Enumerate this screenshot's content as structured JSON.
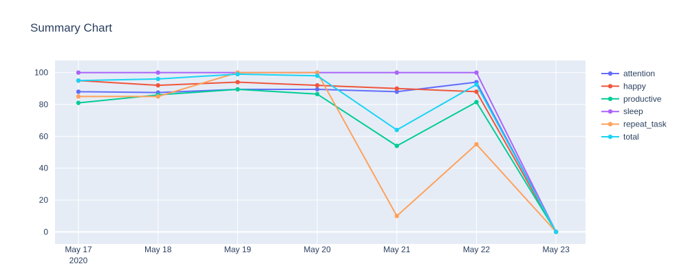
{
  "chart_data": {
    "type": "line",
    "title": "Summary Chart",
    "xlabel": "",
    "ylabel": "",
    "categories": [
      "May 17",
      "May 18",
      "May 19",
      "May 20",
      "May 21",
      "May 22",
      "May 23"
    ],
    "x_year_label": "2020",
    "ylim": [
      -7.6,
      107.6
    ],
    "yticks": [
      0,
      20,
      40,
      60,
      80,
      100
    ],
    "grid": true,
    "legend_position": "right",
    "series": [
      {
        "name": "attention",
        "color": "#636efa",
        "values": [
          88,
          87.5,
          89.5,
          89.5,
          88,
          94,
          0
        ]
      },
      {
        "name": "happy",
        "color": "#EF553B",
        "values": [
          95,
          92,
          94,
          92,
          90,
          88,
          0
        ]
      },
      {
        "name": "productive",
        "color": "#00cc96",
        "values": [
          81,
          86,
          89.5,
          86.5,
          54,
          81.5,
          0
        ]
      },
      {
        "name": "sleep",
        "color": "#ab63fa",
        "values": [
          100,
          100,
          100,
          100,
          100,
          100,
          0
        ]
      },
      {
        "name": "repeat_task",
        "color": "#FFA15A",
        "values": [
          85,
          85,
          100,
          100,
          10,
          55,
          0
        ]
      },
      {
        "name": "total",
        "color": "#19d3f3",
        "values": [
          95,
          96,
          99,
          98,
          64,
          92.5,
          0
        ]
      }
    ]
  }
}
